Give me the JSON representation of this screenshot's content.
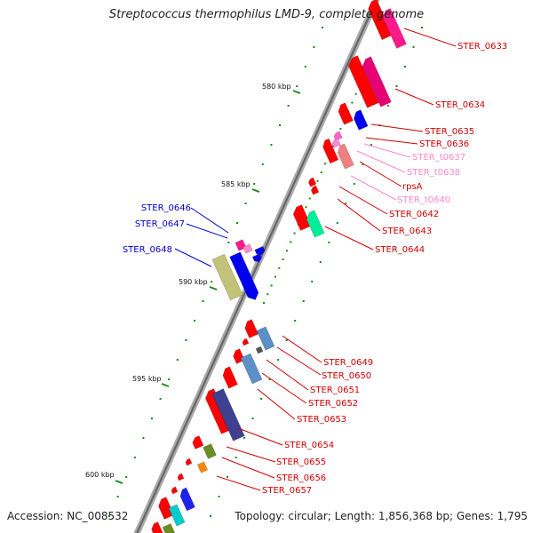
{
  "title": "Streptococcus thermophilus LMD-9, complete genome",
  "footer": {
    "accession": "Accession: NC_008532",
    "stats": "Topology: circular; Length: 1,856,368 bp; Genes: 1,795"
  },
  "colors": {
    "backbone": "#888888",
    "cds_red": "#ff0000",
    "label_red": "#cc0000",
    "label_blue": "#0000cc",
    "label_pink": "#ff88cc",
    "tick": "#1a8a1a"
  },
  "scale_labels": [
    "580 kbp",
    "585 kbp",
    "590 kbp",
    "595 kbp",
    "600 kbp"
  ],
  "gene_labels": [
    {
      "text": "STER_0633",
      "color": "red"
    },
    {
      "text": "STER_0634",
      "color": "red"
    },
    {
      "text": "STER_0635",
      "color": "red"
    },
    {
      "text": "STER_0636",
      "color": "red"
    },
    {
      "text": "STER_t0637",
      "color": "pink"
    },
    {
      "text": "STER_t0638",
      "color": "pink"
    },
    {
      "text": "rpsA",
      "color": "red"
    },
    {
      "text": "STER_t0640",
      "color": "pink"
    },
    {
      "text": "STER_0642",
      "color": "red"
    },
    {
      "text": "STER_0643",
      "color": "red"
    },
    {
      "text": "STER_0644",
      "color": "red"
    },
    {
      "text": "STER_0646",
      "color": "blue"
    },
    {
      "text": "STER_0647",
      "color": "blue"
    },
    {
      "text": "STER_0648",
      "color": "blue"
    },
    {
      "text": "STER_0649",
      "color": "red"
    },
    {
      "text": "STER_0650",
      "color": "red"
    },
    {
      "text": "STER_0651",
      "color": "red"
    },
    {
      "text": "STER_0652",
      "color": "red"
    },
    {
      "text": "STER_0653",
      "color": "red"
    },
    {
      "text": "STER_0654",
      "color": "red"
    },
    {
      "text": "STER_0655",
      "color": "red"
    },
    {
      "text": "STER_0656",
      "color": "red"
    },
    {
      "text": "STER_0657",
      "color": "red"
    }
  ]
}
